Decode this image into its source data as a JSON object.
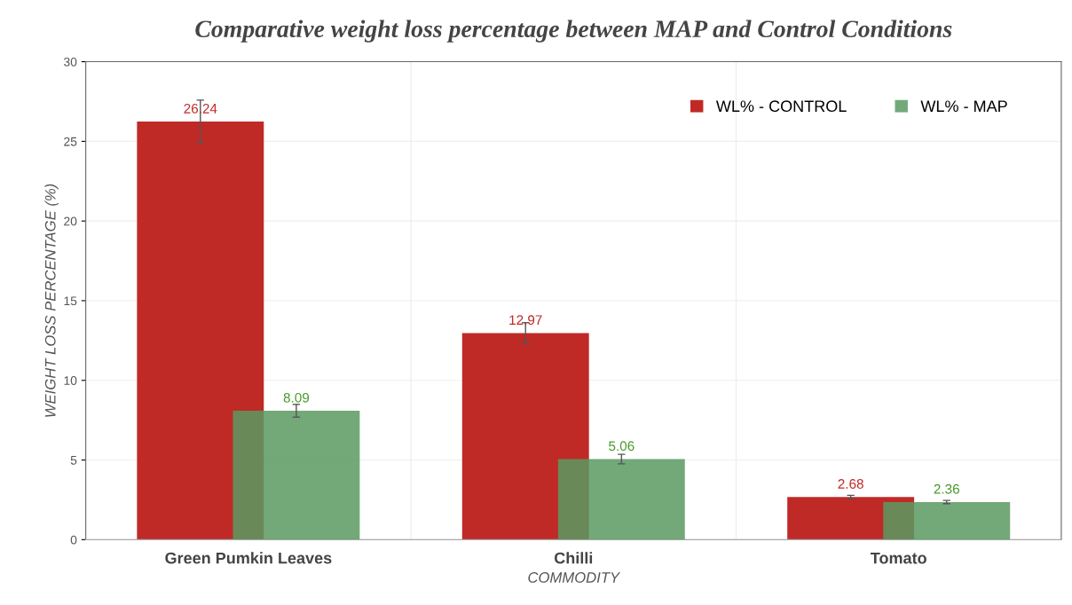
{
  "chart_data": {
    "type": "bar",
    "title": "Comparative weight loss percentage between MAP and Control Conditions",
    "xlabel": "COMMODITY",
    "ylabel": "WEIGHT LOSS PERCENTAGE (%)",
    "categories": [
      "Green Pumkin Leaves",
      "Chilli",
      "Tomato"
    ],
    "series": [
      {
        "name": "WL% - CONTROL",
        "color": "#bf2a26",
        "values": [
          26.24,
          12.97,
          2.68
        ],
        "errors": [
          1.35,
          0.65,
          0.1
        ]
      },
      {
        "name": "WL% - MAP",
        "color": "#5a9a62",
        "values": [
          8.09,
          5.06,
          2.36
        ],
        "errors": [
          0.4,
          0.3,
          0.1
        ]
      }
    ],
    "ylim": [
      0,
      30
    ],
    "yticks": [
      0,
      5,
      10,
      15,
      20,
      25,
      30
    ],
    "data_labels": true,
    "grid": true,
    "legend": "top right"
  }
}
